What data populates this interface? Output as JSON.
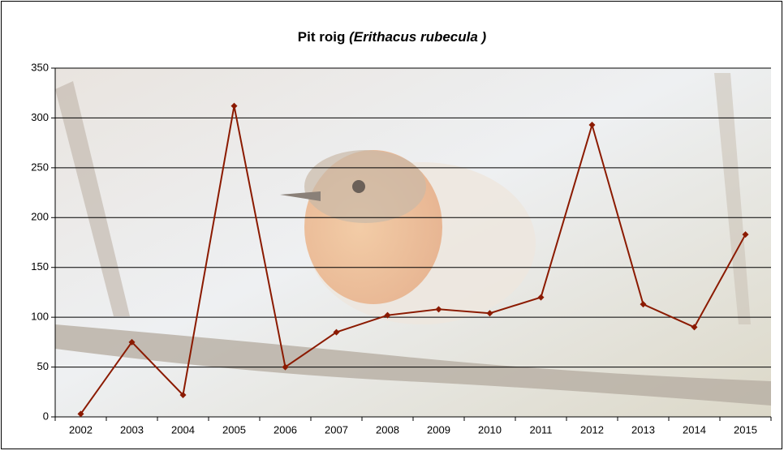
{
  "chart_data": {
    "type": "line",
    "title": [
      "Pit roig",
      "(Erithacus rubecula )"
    ],
    "categories": [
      "2002",
      "2003",
      "2004",
      "2005",
      "2006",
      "2007",
      "2008",
      "2009",
      "2010",
      "2011",
      "2012",
      "2013",
      "2014",
      "2015"
    ],
    "series": [
      {
        "name": "Pit roig",
        "color": "#8b1a00",
        "values": [
          3,
          75,
          22,
          312,
          50,
          85,
          102,
          108,
          104,
          120,
          293,
          113,
          90,
          183
        ]
      }
    ],
    "ylim": [
      0,
      350
    ],
    "yticks": [
      0,
      50,
      100,
      150,
      200,
      250,
      300,
      350
    ],
    "grid": true
  }
}
